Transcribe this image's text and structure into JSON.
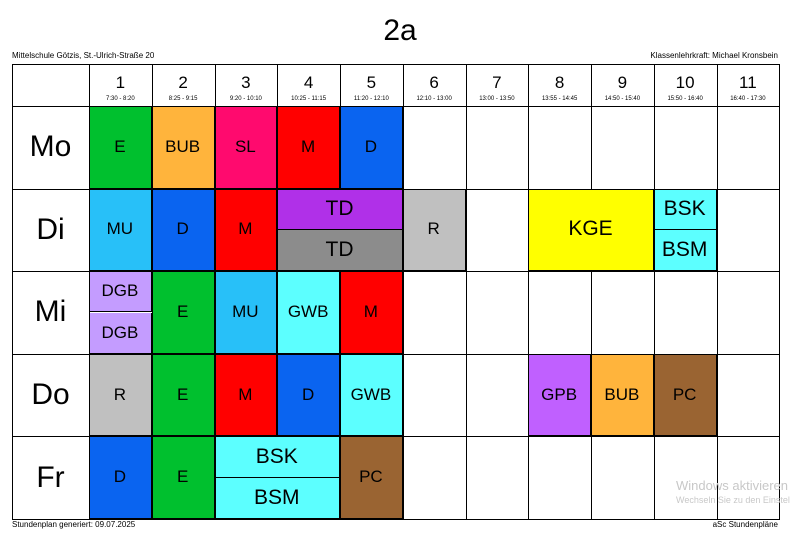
{
  "header": {
    "class_name": "2a",
    "school": "Mittelschule Götzis, St.-Ulrich-Straße 20",
    "teacher": "Klassenlehrkraft: Michael Kronsbein"
  },
  "footer": {
    "generated": "Stundenplan generiert: 09.07.2025",
    "software": "aSc Stundenpläne"
  },
  "periods": [
    {
      "num": "1",
      "time": "7:30 - 8:20"
    },
    {
      "num": "2",
      "time": "8:25 - 9:15"
    },
    {
      "num": "3",
      "time": "9:20 - 10:10"
    },
    {
      "num": "4",
      "time": "10:25 - 11:15"
    },
    {
      "num": "5",
      "time": "11:20 - 12:10"
    },
    {
      "num": "6",
      "time": "12:10 - 13:00"
    },
    {
      "num": "7",
      "time": "13:00 - 13:50"
    },
    {
      "num": "8",
      "time": "13:55 - 14:45"
    },
    {
      "num": "9",
      "time": "14:50 - 15:40"
    },
    {
      "num": "10",
      "time": "15:50 - 16:40"
    },
    {
      "num": "11",
      "time": "16:40 - 17:30"
    }
  ],
  "days": [
    "Mo",
    "Di",
    "Mi",
    "Do",
    "Fr"
  ],
  "lessons": [
    {
      "day": 0,
      "start": 1,
      "span": 1,
      "half": "full",
      "subject": "E",
      "color": "#00c02e"
    },
    {
      "day": 0,
      "start": 2,
      "span": 1,
      "half": "full",
      "subject": "BUB",
      "color": "#ffb43c"
    },
    {
      "day": 0,
      "start": 3,
      "span": 1,
      "half": "full",
      "subject": "SL",
      "color": "#ff0a6e"
    },
    {
      "day": 0,
      "start": 4,
      "span": 1,
      "half": "full",
      "subject": "M",
      "color": "#ff0000"
    },
    {
      "day": 0,
      "start": 5,
      "span": 1,
      "half": "full",
      "subject": "D",
      "color": "#0a64f0"
    },
    {
      "day": 1,
      "start": 1,
      "span": 1,
      "half": "full",
      "subject": "MU",
      "color": "#28c0f8"
    },
    {
      "day": 1,
      "start": 2,
      "span": 1,
      "half": "full",
      "subject": "D",
      "color": "#0a64f0"
    },
    {
      "day": 1,
      "start": 3,
      "span": 1,
      "half": "full",
      "subject": "M",
      "color": "#ff0000"
    },
    {
      "day": 1,
      "start": 4,
      "span": 2,
      "half": "top",
      "subject": "TD",
      "color": "#b030e8"
    },
    {
      "day": 1,
      "start": 4,
      "span": 2,
      "half": "bottom",
      "subject": "TD",
      "color": "#8c8c8c"
    },
    {
      "day": 1,
      "start": 6,
      "span": 1,
      "half": "full",
      "subject": "R",
      "color": "#c0c0c0"
    },
    {
      "day": 1,
      "start": 8,
      "span": 2,
      "half": "full",
      "subject": "KGE",
      "color": "#ffff00"
    },
    {
      "day": 1,
      "start": 10,
      "span": 1,
      "half": "top",
      "subject": "BSK",
      "color": "#5cffff"
    },
    {
      "day": 1,
      "start": 10,
      "span": 1,
      "half": "bottom",
      "subject": "BSM",
      "color": "#5cffff"
    },
    {
      "day": 2,
      "start": 1,
      "span": 1,
      "half": "top",
      "subject": "DGB",
      "color": "#c49cff"
    },
    {
      "day": 2,
      "start": 1,
      "span": 1,
      "half": "bottom",
      "subject": "DGB",
      "color": "#c49cff"
    },
    {
      "day": 2,
      "start": 2,
      "span": 1,
      "half": "full",
      "subject": "E",
      "color": "#00c02e"
    },
    {
      "day": 2,
      "start": 3,
      "span": 1,
      "half": "full",
      "subject": "MU",
      "color": "#28c0f8"
    },
    {
      "day": 2,
      "start": 4,
      "span": 1,
      "half": "full",
      "subject": "GWB",
      "color": "#5cffff"
    },
    {
      "day": 2,
      "start": 5,
      "span": 1,
      "half": "full",
      "subject": "M",
      "color": "#ff0000"
    },
    {
      "day": 3,
      "start": 1,
      "span": 1,
      "half": "full",
      "subject": "R",
      "color": "#c0c0c0"
    },
    {
      "day": 3,
      "start": 2,
      "span": 1,
      "half": "full",
      "subject": "E",
      "color": "#00c02e"
    },
    {
      "day": 3,
      "start": 3,
      "span": 1,
      "half": "full",
      "subject": "M",
      "color": "#ff0000"
    },
    {
      "day": 3,
      "start": 4,
      "span": 1,
      "half": "full",
      "subject": "D",
      "color": "#0a64f0"
    },
    {
      "day": 3,
      "start": 5,
      "span": 1,
      "half": "full",
      "subject": "GWB",
      "color": "#5cffff"
    },
    {
      "day": 3,
      "start": 8,
      "span": 1,
      "half": "full",
      "subject": "GPB",
      "color": "#c060ff"
    },
    {
      "day": 3,
      "start": 9,
      "span": 1,
      "half": "full",
      "subject": "BUB",
      "color": "#ffb43c"
    },
    {
      "day": 3,
      "start": 10,
      "span": 1,
      "half": "full",
      "subject": "PC",
      "color": "#9a6432"
    },
    {
      "day": 4,
      "start": 1,
      "span": 1,
      "half": "full",
      "subject": "D",
      "color": "#0a64f0"
    },
    {
      "day": 4,
      "start": 2,
      "span": 1,
      "half": "full",
      "subject": "E",
      "color": "#00c02e"
    },
    {
      "day": 4,
      "start": 3,
      "span": 2,
      "half": "top",
      "subject": "BSK",
      "color": "#5cffff"
    },
    {
      "day": 4,
      "start": 3,
      "span": 2,
      "half": "bottom",
      "subject": "BSM",
      "color": "#5cffff"
    },
    {
      "day": 4,
      "start": 5,
      "span": 1,
      "half": "full",
      "subject": "PC",
      "color": "#9a6432"
    }
  ],
  "watermark": {
    "line1": "Windows aktivieren",
    "line2": "Wechseln Sie zu den Einstel"
  }
}
